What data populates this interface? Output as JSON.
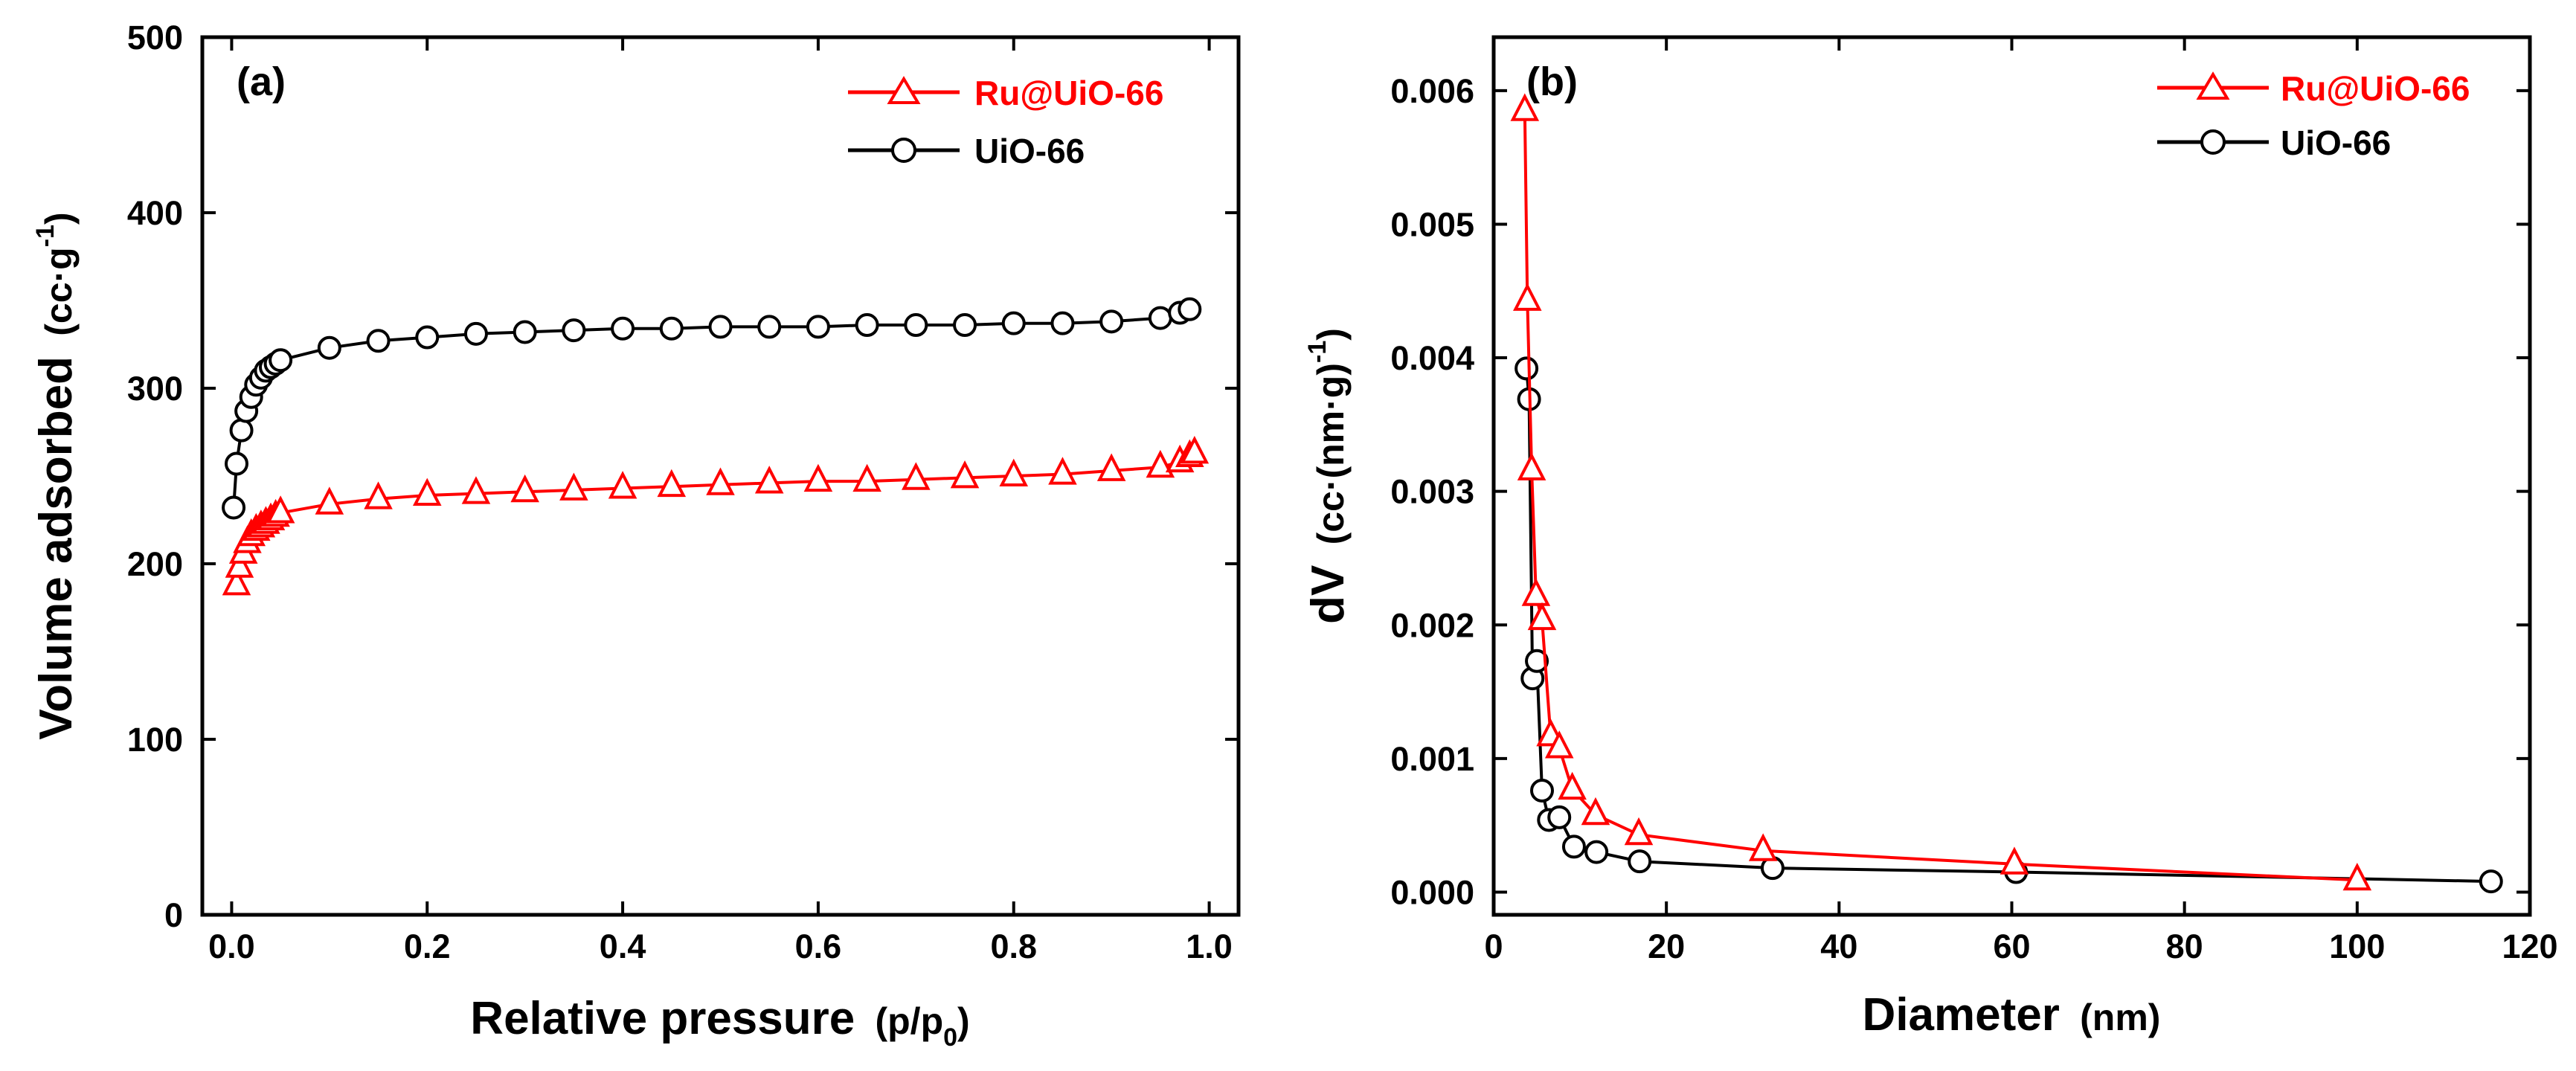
{
  "colors": {
    "ru_series": "#ff0000",
    "uio_series": "#000000",
    "axes": "#000000",
    "background": "#ffffff"
  },
  "chart_data": [
    {
      "type": "line",
      "panel_label": "(a)",
      "title": "",
      "xlabel": "Relative pressure",
      "xlabel_unit": "(p/p",
      "xlabel_unit_sub": "0",
      "xlabel_unit_close": ")",
      "ylabel": "Volume adsorbed",
      "ylabel_unit": "(cc·g",
      "ylabel_unit_sup": "-1",
      "ylabel_unit_close": ")",
      "xlim": [
        -0.03,
        1.03
      ],
      "ylim": [
        0,
        500
      ],
      "xticks": [
        0.0,
        0.2,
        0.4,
        0.6,
        0.8,
        1.0
      ],
      "xtick_labels": [
        "0.0",
        "0.2",
        "0.4",
        "0.6",
        "0.8",
        "1.0"
      ],
      "yticks": [
        0,
        100,
        200,
        300,
        400,
        500
      ],
      "ytick_labels": [
        "0",
        "100",
        "200",
        "300",
        "400",
        "500"
      ],
      "legend_position": "top-right",
      "grid": false,
      "series": [
        {
          "name": "Ru@UiO-66",
          "color": "#ff0000",
          "marker": "triangle",
          "x": [
            0.005,
            0.008,
            0.012,
            0.016,
            0.02,
            0.025,
            0.03,
            0.035,
            0.04,
            0.045,
            0.05,
            0.1,
            0.15,
            0.2,
            0.25,
            0.3,
            0.35,
            0.4,
            0.45,
            0.5,
            0.55,
            0.6,
            0.65,
            0.7,
            0.75,
            0.8,
            0.85,
            0.9,
            0.95,
            0.97,
            0.98,
            0.985
          ],
          "y": [
            188,
            198,
            206,
            212,
            216,
            219,
            221,
            223,
            225,
            227,
            229,
            234,
            237,
            239,
            240,
            241,
            242,
            243,
            244,
            245,
            246,
            247,
            247,
            248,
            249,
            250,
            251,
            253,
            255,
            258,
            261,
            263
          ]
        },
        {
          "name": "UiO-66",
          "color": "#000000",
          "marker": "circle",
          "x": [
            0.002,
            0.005,
            0.01,
            0.015,
            0.02,
            0.025,
            0.03,
            0.035,
            0.04,
            0.045,
            0.05,
            0.1,
            0.15,
            0.2,
            0.25,
            0.3,
            0.35,
            0.4,
            0.45,
            0.5,
            0.55,
            0.6,
            0.65,
            0.7,
            0.75,
            0.8,
            0.85,
            0.9,
            0.95,
            0.97,
            0.98
          ],
          "y": [
            232,
            257,
            276,
            287,
            295,
            302,
            306,
            310,
            312,
            314,
            316,
            323,
            327,
            329,
            331,
            332,
            333,
            334,
            334,
            335,
            335,
            335,
            336,
            336,
            336,
            337,
            337,
            338,
            340,
            343,
            345
          ]
        }
      ]
    },
    {
      "type": "line",
      "panel_label": "(b)",
      "title": "",
      "xlabel": "Diameter",
      "xlabel_unit": "(nm)",
      "ylabel": "dV",
      "ylabel_unit": "(cc·(nm·g)",
      "ylabel_unit_sup": "-1",
      "ylabel_unit_close": ")",
      "xlim": [
        0,
        120
      ],
      "ylim": [
        -0.00017,
        0.0064
      ],
      "xticks": [
        0,
        20,
        40,
        60,
        80,
        100,
        120
      ],
      "xtick_labels": [
        "0",
        "20",
        "40",
        "60",
        "80",
        "100",
        "120"
      ],
      "yticks": [
        0.0,
        0.001,
        0.002,
        0.003,
        0.004,
        0.005,
        0.006
      ],
      "ytick_labels": [
        "0.000",
        "0.001",
        "0.002",
        "0.003",
        "0.004",
        "0.005",
        "0.006"
      ],
      "legend_position": "top-right",
      "grid": false,
      "series": [
        {
          "name": "Ru@UiO-66",
          "color": "#ff0000",
          "marker": "triangle",
          "x": [
            3.6,
            3.9,
            4.4,
            4.9,
            5.6,
            6.6,
            7.6,
            9.1,
            11.8,
            16.8,
            31.2,
            60.3,
            100.0
          ],
          "y": [
            0.00585,
            0.00443,
            0.00316,
            0.00222,
            0.00204,
            0.00117,
            0.00108,
            0.00077,
            0.00058,
            0.00043,
            0.00031,
            0.00021,
            9e-05
          ]
        },
        {
          "name": "UiO-66",
          "color": "#000000",
          "marker": "circle",
          "x": [
            3.8,
            4.1,
            4.5,
            5.0,
            5.6,
            6.4,
            7.6,
            9.3,
            11.9,
            16.9,
            32.3,
            60.5,
            115.5
          ],
          "y": [
            0.00392,
            0.00369,
            0.0016,
            0.00173,
            0.00076,
            0.00054,
            0.00056,
            0.00034,
            0.0003,
            0.00023,
            0.00018,
            0.00015,
            8e-05
          ]
        }
      ]
    }
  ]
}
